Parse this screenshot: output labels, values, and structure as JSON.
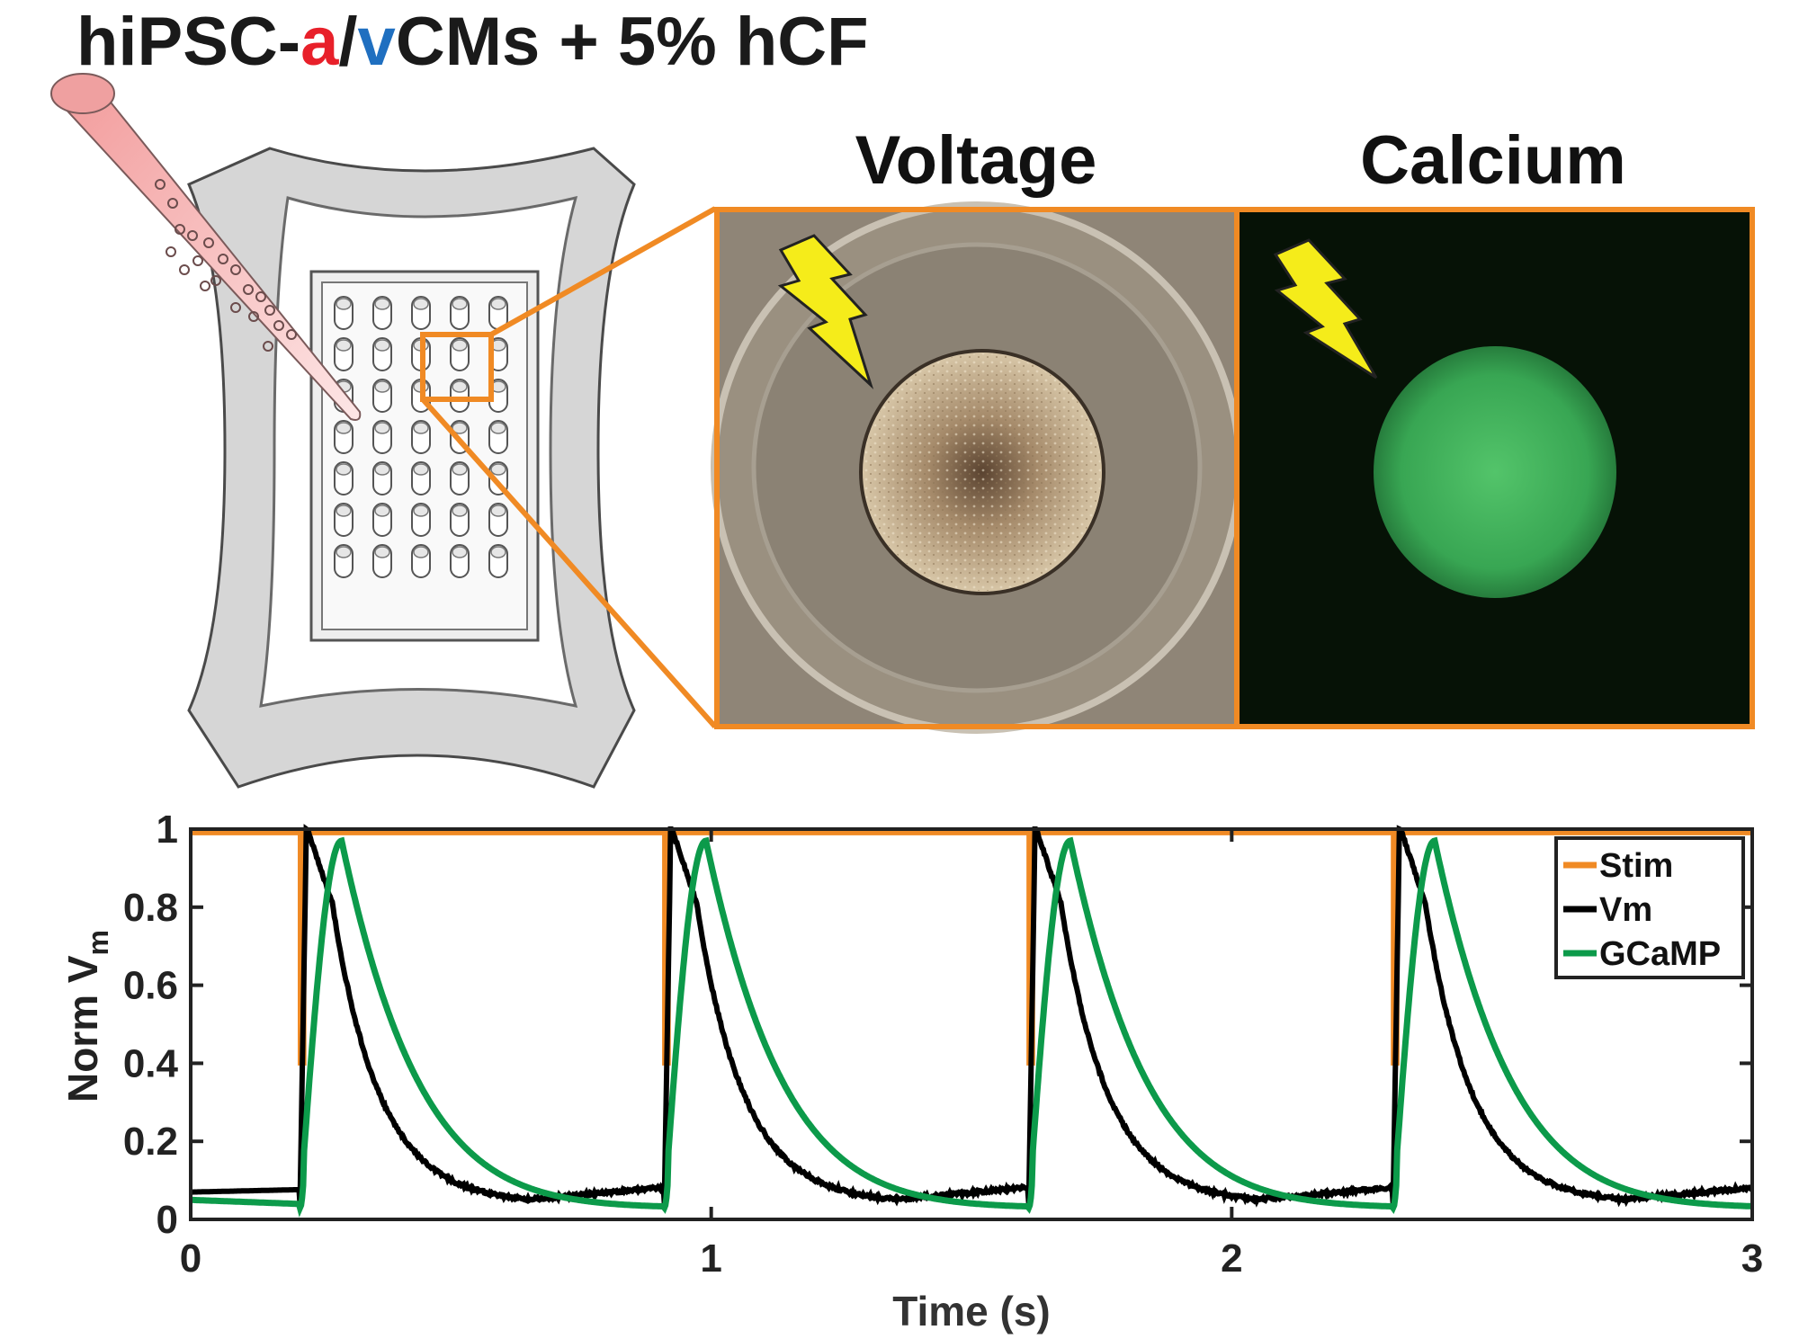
{
  "header": {
    "title_part1": "hiPSC-",
    "title_a": "a",
    "title_slash": "/",
    "title_v": "v",
    "title_part2": "CMs + 5% hCF",
    "a_color": "#e8202a",
    "v_color": "#1f6fc0"
  },
  "panels": {
    "voltage_label": "Voltage",
    "calcium_label": "Calcium",
    "frame_color": "#f08a24",
    "bolt_color": "#f5ec1a"
  },
  "chart_data": {
    "type": "line",
    "xlabel": "Time (s)",
    "ylabel_main": "Norm V",
    "ylabel_sub": "m",
    "xlim": [
      0,
      3
    ],
    "ylim": [
      0,
      1
    ],
    "xticks": [
      0,
      1,
      2,
      3
    ],
    "yticks": [
      0,
      0.2,
      0.4,
      0.6,
      0.8,
      1
    ],
    "xtick_labels": [
      "0",
      "1",
      "2",
      "3"
    ],
    "ytick_labels": [
      "0",
      "0.2",
      "0.4",
      "0.6",
      "0.8",
      "1"
    ],
    "stim_times": [
      0.21,
      0.91,
      1.61,
      2.31
    ],
    "legend_position": "top-right",
    "series": [
      {
        "name": "Stim",
        "color": "#f08a24",
        "base": 0.99,
        "dip_to": 0.4,
        "dip_width": 0.008
      },
      {
        "name": "Vm",
        "color": "#000000",
        "baseline": 0.04,
        "peak": 0.97,
        "rise_time": 0.012,
        "decay_tau": 0.09
      },
      {
        "name": "GCaMP",
        "color": "#0c9a4a",
        "baseline": 0.03,
        "peak": 0.97,
        "peak_delay": 0.08,
        "decay_tau": 0.15
      }
    ]
  }
}
